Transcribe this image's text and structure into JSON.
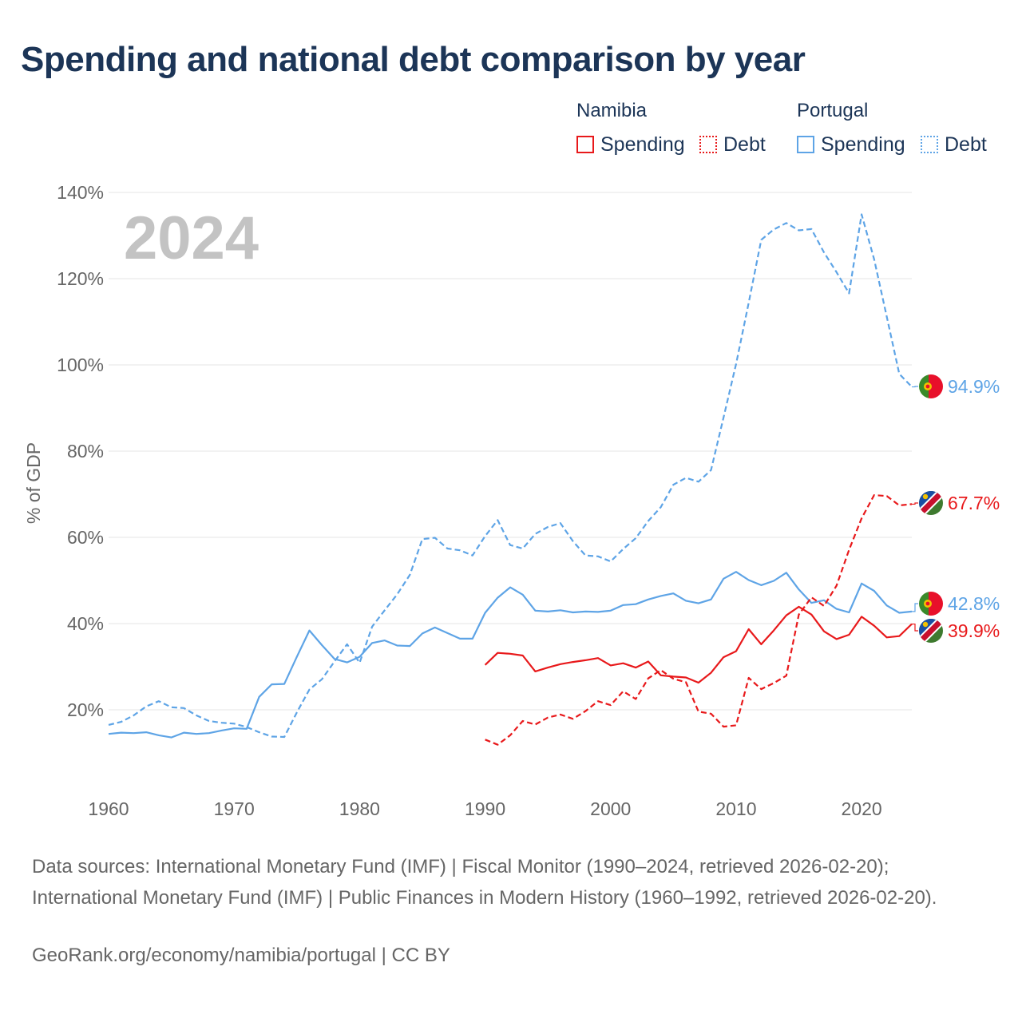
{
  "title": "Spending and national debt comparison by year",
  "legend": {
    "groups": [
      {
        "name": "Namibia",
        "color": "#e8191b",
        "spending_label": "Spending",
        "debt_label": "Debt"
      },
      {
        "name": "Portugal",
        "color": "#5ea4e6",
        "spending_label": "Spending",
        "debt_label": "Debt"
      }
    ]
  },
  "sources": "Data sources: International Monetary Fund (IMF) | Fiscal Monitor (1990–2024, retrieved 2026-02-20); International Monetary Fund (IMF) | Public Finances in Modern History (1960–1992, retrieved 2026-02-20).",
  "credit": "GeoRank.org/economy/namibia/portugal | CC BY",
  "chart_data": {
    "type": "line",
    "year_label": "2024",
    "ylabel": "% of GDP",
    "xlim": [
      1960,
      2024
    ],
    "ylim": [
      0,
      140
    ],
    "x_ticks": [
      1960,
      1970,
      1980,
      1990,
      2000,
      2010,
      2020
    ],
    "y_ticks": [
      20,
      40,
      60,
      80,
      100,
      120,
      140
    ],
    "y_tick_labels": [
      "20%",
      "40%",
      "60%",
      "80%",
      "100%",
      "120%",
      "140%"
    ],
    "series": [
      {
        "name": "Portugal Debt",
        "country": "Portugal",
        "measure": "Debt",
        "color": "#5ea4e6",
        "dashed": true,
        "end_label": "94.9%",
        "x": [
          1960,
          1961,
          1962,
          1963,
          1964,
          1965,
          1966,
          1967,
          1968,
          1969,
          1970,
          1971,
          1972,
          1973,
          1974,
          1975,
          1976,
          1977,
          1978,
          1979,
          1980,
          1981,
          1982,
          1983,
          1984,
          1985,
          1986,
          1987,
          1988,
          1989,
          1990,
          1991,
          1992,
          1993,
          1994,
          1995,
          1996,
          1997,
          1998,
          1999,
          2000,
          2001,
          2002,
          2003,
          2004,
          2005,
          2006,
          2007,
          2008,
          2009,
          2010,
          2011,
          2012,
          2013,
          2014,
          2015,
          2016,
          2017,
          2018,
          2019,
          2020,
          2021,
          2022,
          2023,
          2024
        ],
        "values": [
          16.5,
          17.2,
          18.7,
          20.8,
          22.0,
          20.6,
          20.4,
          18.7,
          17.4,
          17.0,
          16.8,
          16.0,
          14.8,
          13.8,
          13.7,
          19.4,
          24.7,
          27.1,
          31.2,
          35.2,
          30.9,
          39.3,
          43.1,
          46.8,
          51.3,
          59.6,
          59.9,
          57.4,
          57.0,
          55.8,
          60.3,
          64.0,
          58.2,
          57.4,
          60.8,
          62.4,
          63.3,
          59.1,
          55.8,
          55.6,
          54.4,
          57.3,
          59.8,
          63.8,
          67.0,
          72.2,
          73.8,
          72.9,
          75.6,
          87.8,
          100.2,
          114.4,
          129.0,
          131.4,
          132.9,
          131.2,
          131.5,
          126.1,
          121.5,
          116.6,
          134.9,
          124.5,
          111.2,
          97.9,
          94.9
        ]
      },
      {
        "name": "Portugal Spending",
        "country": "Portugal",
        "measure": "Spending",
        "color": "#5ea4e6",
        "dashed": false,
        "end_label": "42.8%",
        "x": [
          1960,
          1961,
          1962,
          1963,
          1964,
          1965,
          1966,
          1967,
          1968,
          1969,
          1970,
          1971,
          1972,
          1973,
          1974,
          1975,
          1976,
          1977,
          1978,
          1979,
          1980,
          1981,
          1982,
          1983,
          1984,
          1985,
          1986,
          1987,
          1988,
          1989,
          1990,
          1991,
          1992,
          1993,
          1994,
          1995,
          1996,
          1997,
          1998,
          1999,
          2000,
          2001,
          2002,
          2003,
          2004,
          2005,
          2006,
          2007,
          2008,
          2009,
          2010,
          2011,
          2012,
          2013,
          2014,
          2015,
          2016,
          2017,
          2018,
          2019,
          2020,
          2021,
          2022,
          2023,
          2024
        ],
        "values": [
          14.4,
          14.7,
          14.6,
          14.8,
          14.1,
          13.6,
          14.7,
          14.4,
          14.6,
          15.2,
          15.7,
          15.6,
          23.0,
          25.9,
          26.0,
          32.3,
          38.4,
          35.0,
          31.8,
          31.0,
          32.3,
          35.5,
          36.1,
          34.9,
          34.8,
          37.7,
          39.1,
          37.8,
          36.5,
          36.5,
          42.5,
          46.0,
          48.4,
          46.7,
          43.0,
          42.8,
          43.1,
          42.6,
          42.8,
          42.7,
          43.0,
          44.3,
          44.5,
          45.6,
          46.4,
          47.0,
          45.3,
          44.7,
          45.6,
          50.4,
          52.0,
          50.1,
          48.9,
          49.9,
          51.8,
          47.9,
          44.8,
          45.4,
          43.4,
          42.6,
          49.3,
          47.6,
          44.2,
          42.5,
          42.8
        ]
      },
      {
        "name": "Namibia Debt",
        "country": "Namibia",
        "measure": "Debt",
        "color": "#e8191b",
        "dashed": true,
        "end_label": "67.7%",
        "x": [
          1990,
          1991,
          1992,
          1993,
          1994,
          1995,
          1996,
          1997,
          1998,
          1999,
          2000,
          2001,
          2002,
          2003,
          2004,
          2005,
          2006,
          2007,
          2008,
          2009,
          2010,
          2011,
          2012,
          2013,
          2014,
          2015,
          2016,
          2017,
          2018,
          2019,
          2020,
          2021,
          2022,
          2023,
          2024
        ],
        "values": [
          13.1,
          11.9,
          14.1,
          17.4,
          16.6,
          18.2,
          18.9,
          17.9,
          19.7,
          22.0,
          21.1,
          24.3,
          22.5,
          27.3,
          29.2,
          27.2,
          26.4,
          19.6,
          19.1,
          16.1,
          16.4,
          27.4,
          24.8,
          26.2,
          27.9,
          42.1,
          46.1,
          44.1,
          48.8,
          57.1,
          64.4,
          69.8,
          69.6,
          67.4,
          67.7
        ]
      },
      {
        "name": "Namibia Spending",
        "country": "Namibia",
        "measure": "Spending",
        "color": "#e8191b",
        "dashed": false,
        "end_label": "39.9%",
        "x": [
          1990,
          1991,
          1992,
          1993,
          1994,
          1995,
          1996,
          1997,
          1998,
          1999,
          2000,
          2001,
          2002,
          2003,
          2004,
          2005,
          2006,
          2007,
          2008,
          2009,
          2010,
          2011,
          2012,
          2013,
          2014,
          2015,
          2016,
          2017,
          2018,
          2019,
          2020,
          2021,
          2022,
          2023,
          2024
        ],
        "values": [
          30.4,
          33.2,
          33.0,
          32.6,
          28.9,
          29.8,
          30.6,
          31.1,
          31.5,
          32.0,
          30.3,
          30.8,
          29.8,
          31.2,
          28.0,
          27.7,
          27.5,
          26.3,
          28.6,
          32.2,
          33.6,
          38.7,
          35.2,
          38.4,
          41.9,
          43.9,
          42.1,
          38.2,
          36.4,
          37.4,
          41.6,
          39.5,
          36.8,
          37.1,
          39.9
        ]
      }
    ]
  }
}
